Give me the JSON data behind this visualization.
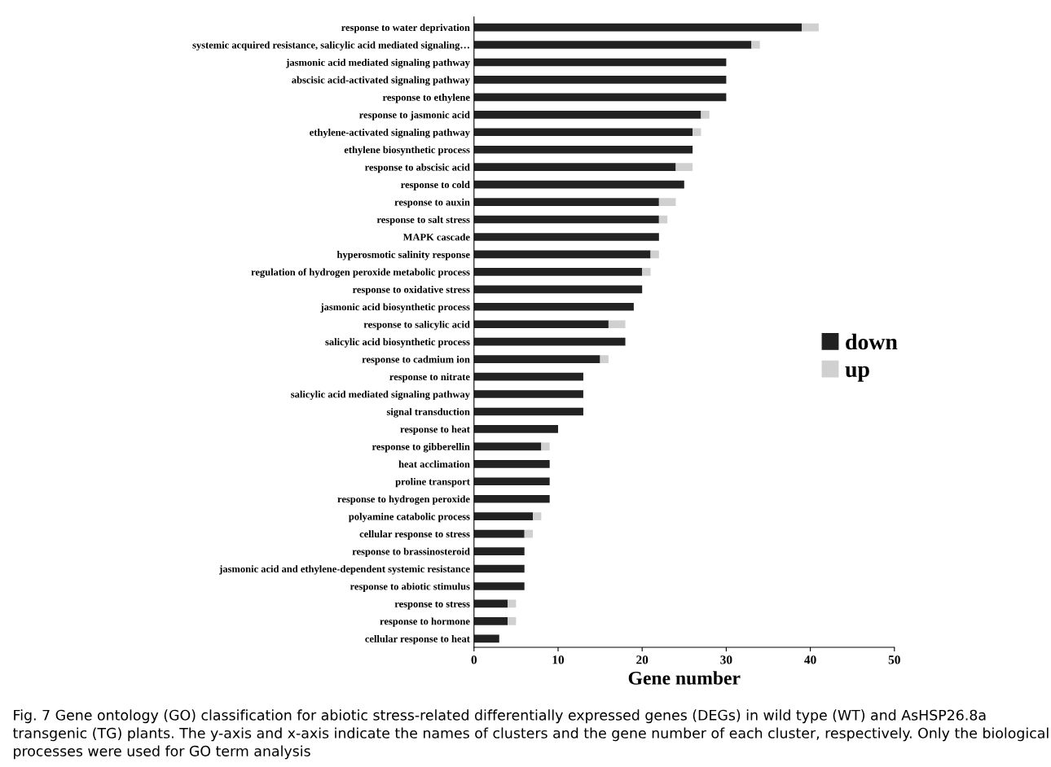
{
  "chart_data": {
    "type": "bar",
    "orientation": "horizontal",
    "stacked": true,
    "categories": [
      "response to water deprivation",
      "systemic acquired resistance, salicylic acid mediated signaling…",
      "jasmonic acid mediated signaling pathway",
      "abscisic acid-activated signaling pathway",
      "response to ethylene",
      "response to jasmonic acid",
      "ethylene-activated signaling pathway",
      "ethylene biosynthetic process",
      "response to abscisic acid",
      "response to cold",
      "response to auxin",
      "response to salt stress",
      "MAPK cascade",
      "hyperosmotic salinity response",
      "regulation of hydrogen peroxide metabolic process",
      "response to oxidative stress",
      "jasmonic acid biosynthetic process",
      "response to salicylic acid",
      "salicylic acid biosynthetic process",
      "response to cadmium ion",
      "response to nitrate",
      "salicylic acid mediated signaling pathway",
      "signal transduction",
      "response to heat",
      "response to gibberellin",
      "heat acclimation",
      "proline transport",
      "response to hydrogen peroxide",
      "polyamine catabolic process",
      "cellular response to stress",
      "response to brassinosteroid",
      "jasmonic acid and ethylene-dependent systemic resistance",
      "response to abiotic stimulus",
      "response to stress",
      "response to hormone",
      "cellular response to heat"
    ],
    "series": [
      {
        "name": "down",
        "color": "#222222",
        "values": [
          39,
          33,
          30,
          30,
          30,
          27,
          26,
          26,
          24,
          25,
          22,
          22,
          22,
          21,
          20,
          20,
          19,
          16,
          18,
          15,
          13,
          13,
          13,
          10,
          8,
          9,
          9,
          9,
          7,
          6,
          6,
          6,
          6,
          4,
          4,
          3
        ]
      },
      {
        "name": "up",
        "color": "#d0d0d0",
        "values": [
          2,
          1,
          0,
          0,
          0,
          1,
          1,
          0,
          2,
          0,
          2,
          1,
          0,
          1,
          1,
          0,
          0,
          2,
          0,
          1,
          0,
          0,
          0,
          0,
          1,
          0,
          0,
          0,
          1,
          1,
          0,
          0,
          0,
          1,
          1,
          0
        ]
      }
    ],
    "xlabel": "Gene number",
    "xlim": [
      0,
      50
    ],
    "xticks": [
      0,
      10,
      20,
      30,
      40,
      50
    ],
    "grid": false,
    "legend": "right",
    "annotations": [
      "Fig. 7 Gene ontology (GO) classification for abiotic stress-related differentially expressed genes (DEGs) in wild type (WT) and AsHSP26.8a transgenic (TG) plants. The y-axis and x-axis indicate the names of clusters and the gene number of each cluster, respectively. Only the biological processes were used for GO term analysis"
    ]
  }
}
